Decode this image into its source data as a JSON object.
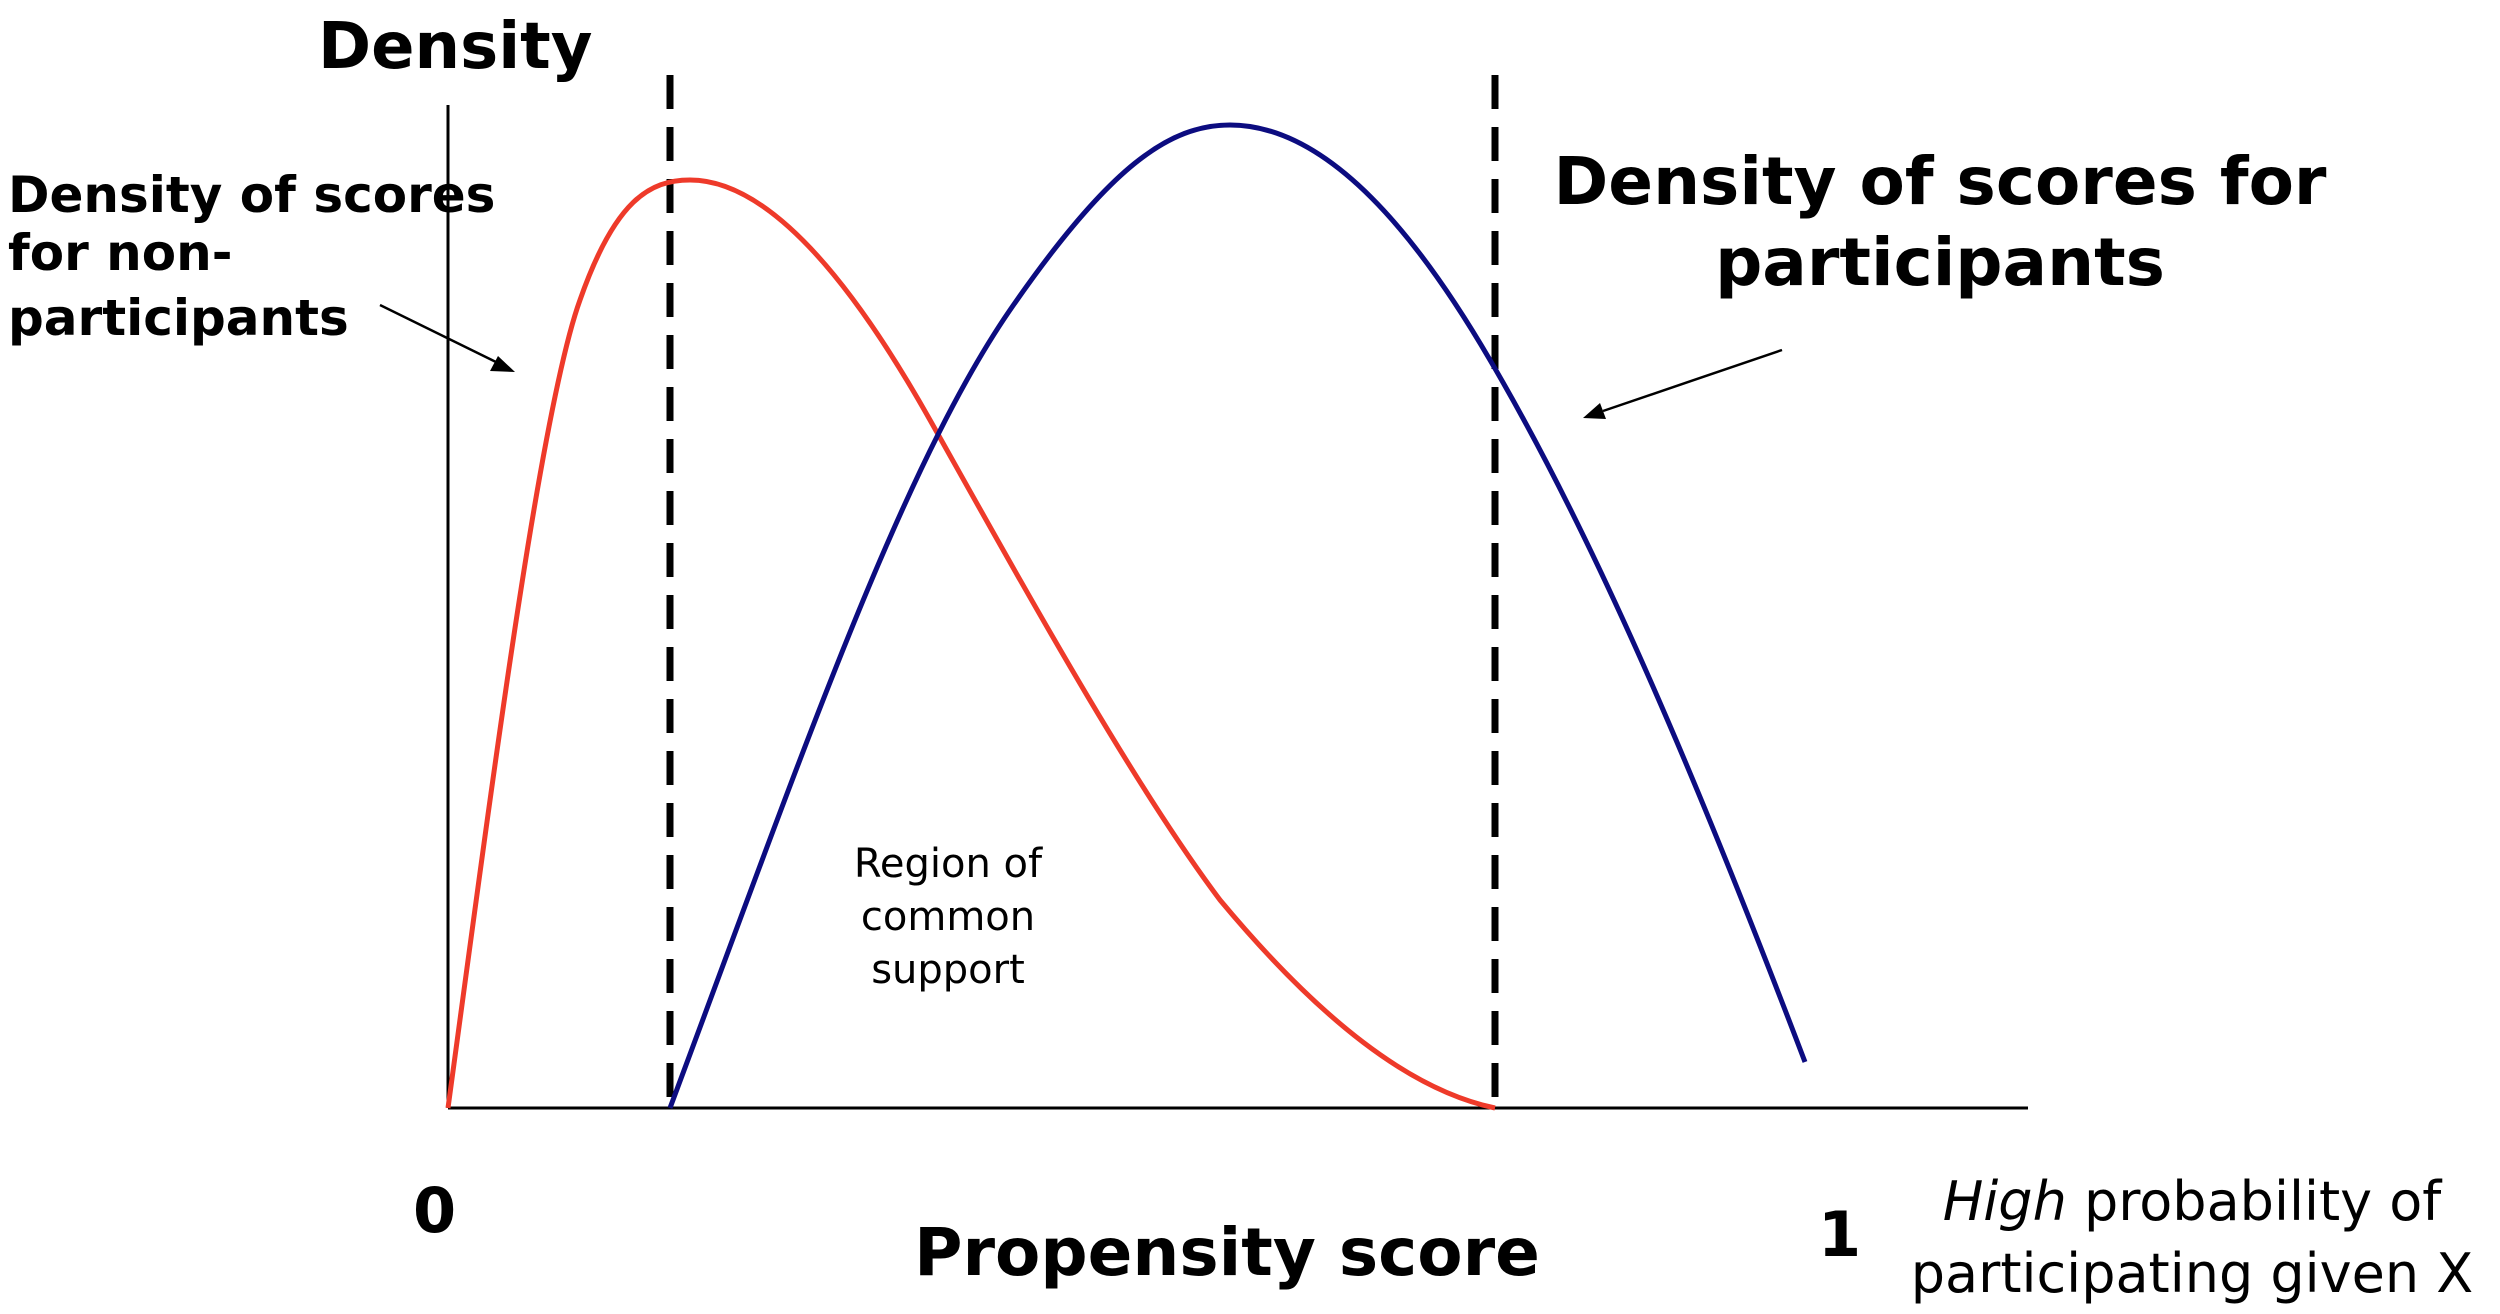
{
  "labels": {
    "y_axis_title": "Density",
    "non_participants_line1": "Density of scores",
    "non_participants_line2": "for non-",
    "non_participants_line3": "participants",
    "participants_line1": "Density of scores for",
    "participants_line2": "participants",
    "region_line1": "Region of",
    "region_line2": "common",
    "region_line3": "support",
    "x_axis_zero": "0",
    "x_axis_one": "1",
    "x_axis_title": "Propensity score",
    "high_prob_italic": "High",
    "high_prob_rest": " probability of",
    "high_prob_line2": "participating given X"
  },
  "colors": {
    "non_participants_curve": "#ee3a2a",
    "participants_curve": "#0c0c80",
    "axes": "#000000",
    "dashed_lines": "#000000"
  }
}
